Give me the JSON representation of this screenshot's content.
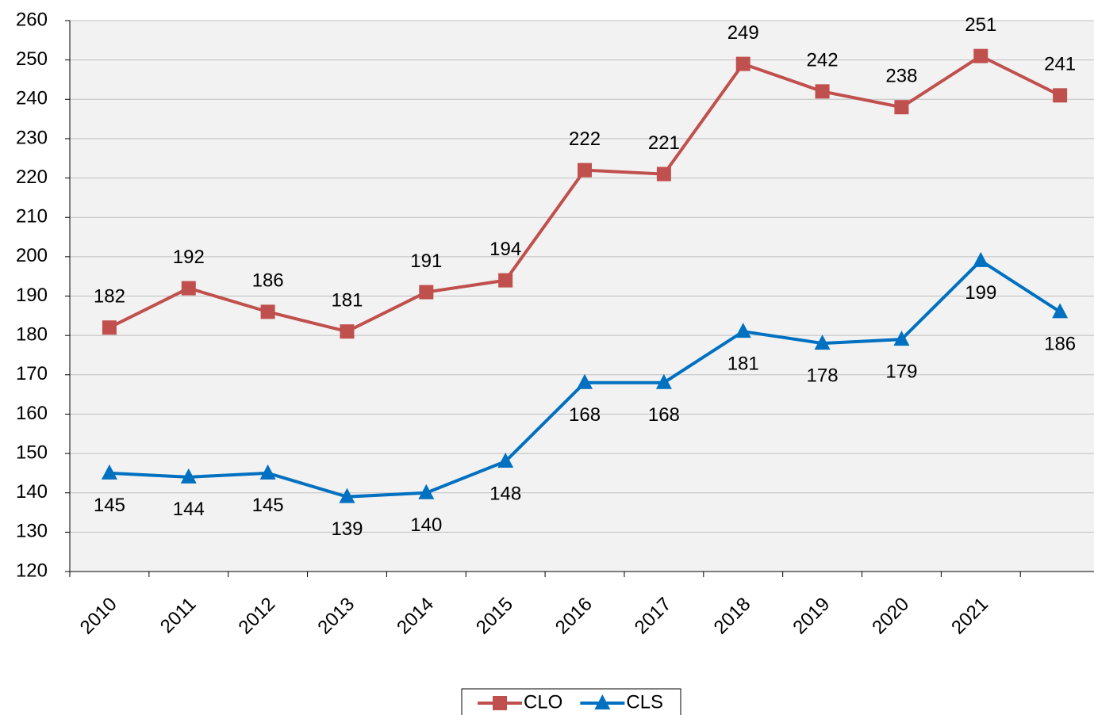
{
  "chart_data": {
    "type": "line",
    "categories": [
      "2010",
      "2011",
      "2012",
      "2013",
      "2014",
      "2015",
      "2016",
      "2017",
      "2018",
      "2019",
      "2020",
      "2021",
      null
    ],
    "series": [
      {
        "name": "CLO",
        "color": "#c0504d",
        "marker": "square",
        "values": [
          182,
          192,
          186,
          181,
          191,
          194,
          222,
          221,
          249,
          242,
          238,
          251,
          241
        ]
      },
      {
        "name": "CLS",
        "color": "#0070c0",
        "marker": "triangle",
        "values": [
          145,
          144,
          145,
          139,
          140,
          148,
          168,
          168,
          181,
          178,
          179,
          199,
          186
        ]
      }
    ],
    "ylim": [
      120,
      260
    ],
    "yticks": [
      120,
      130,
      140,
      150,
      160,
      170,
      180,
      190,
      200,
      210,
      220,
      230,
      240,
      250,
      260
    ],
    "grid": true,
    "legend": "bottom"
  }
}
